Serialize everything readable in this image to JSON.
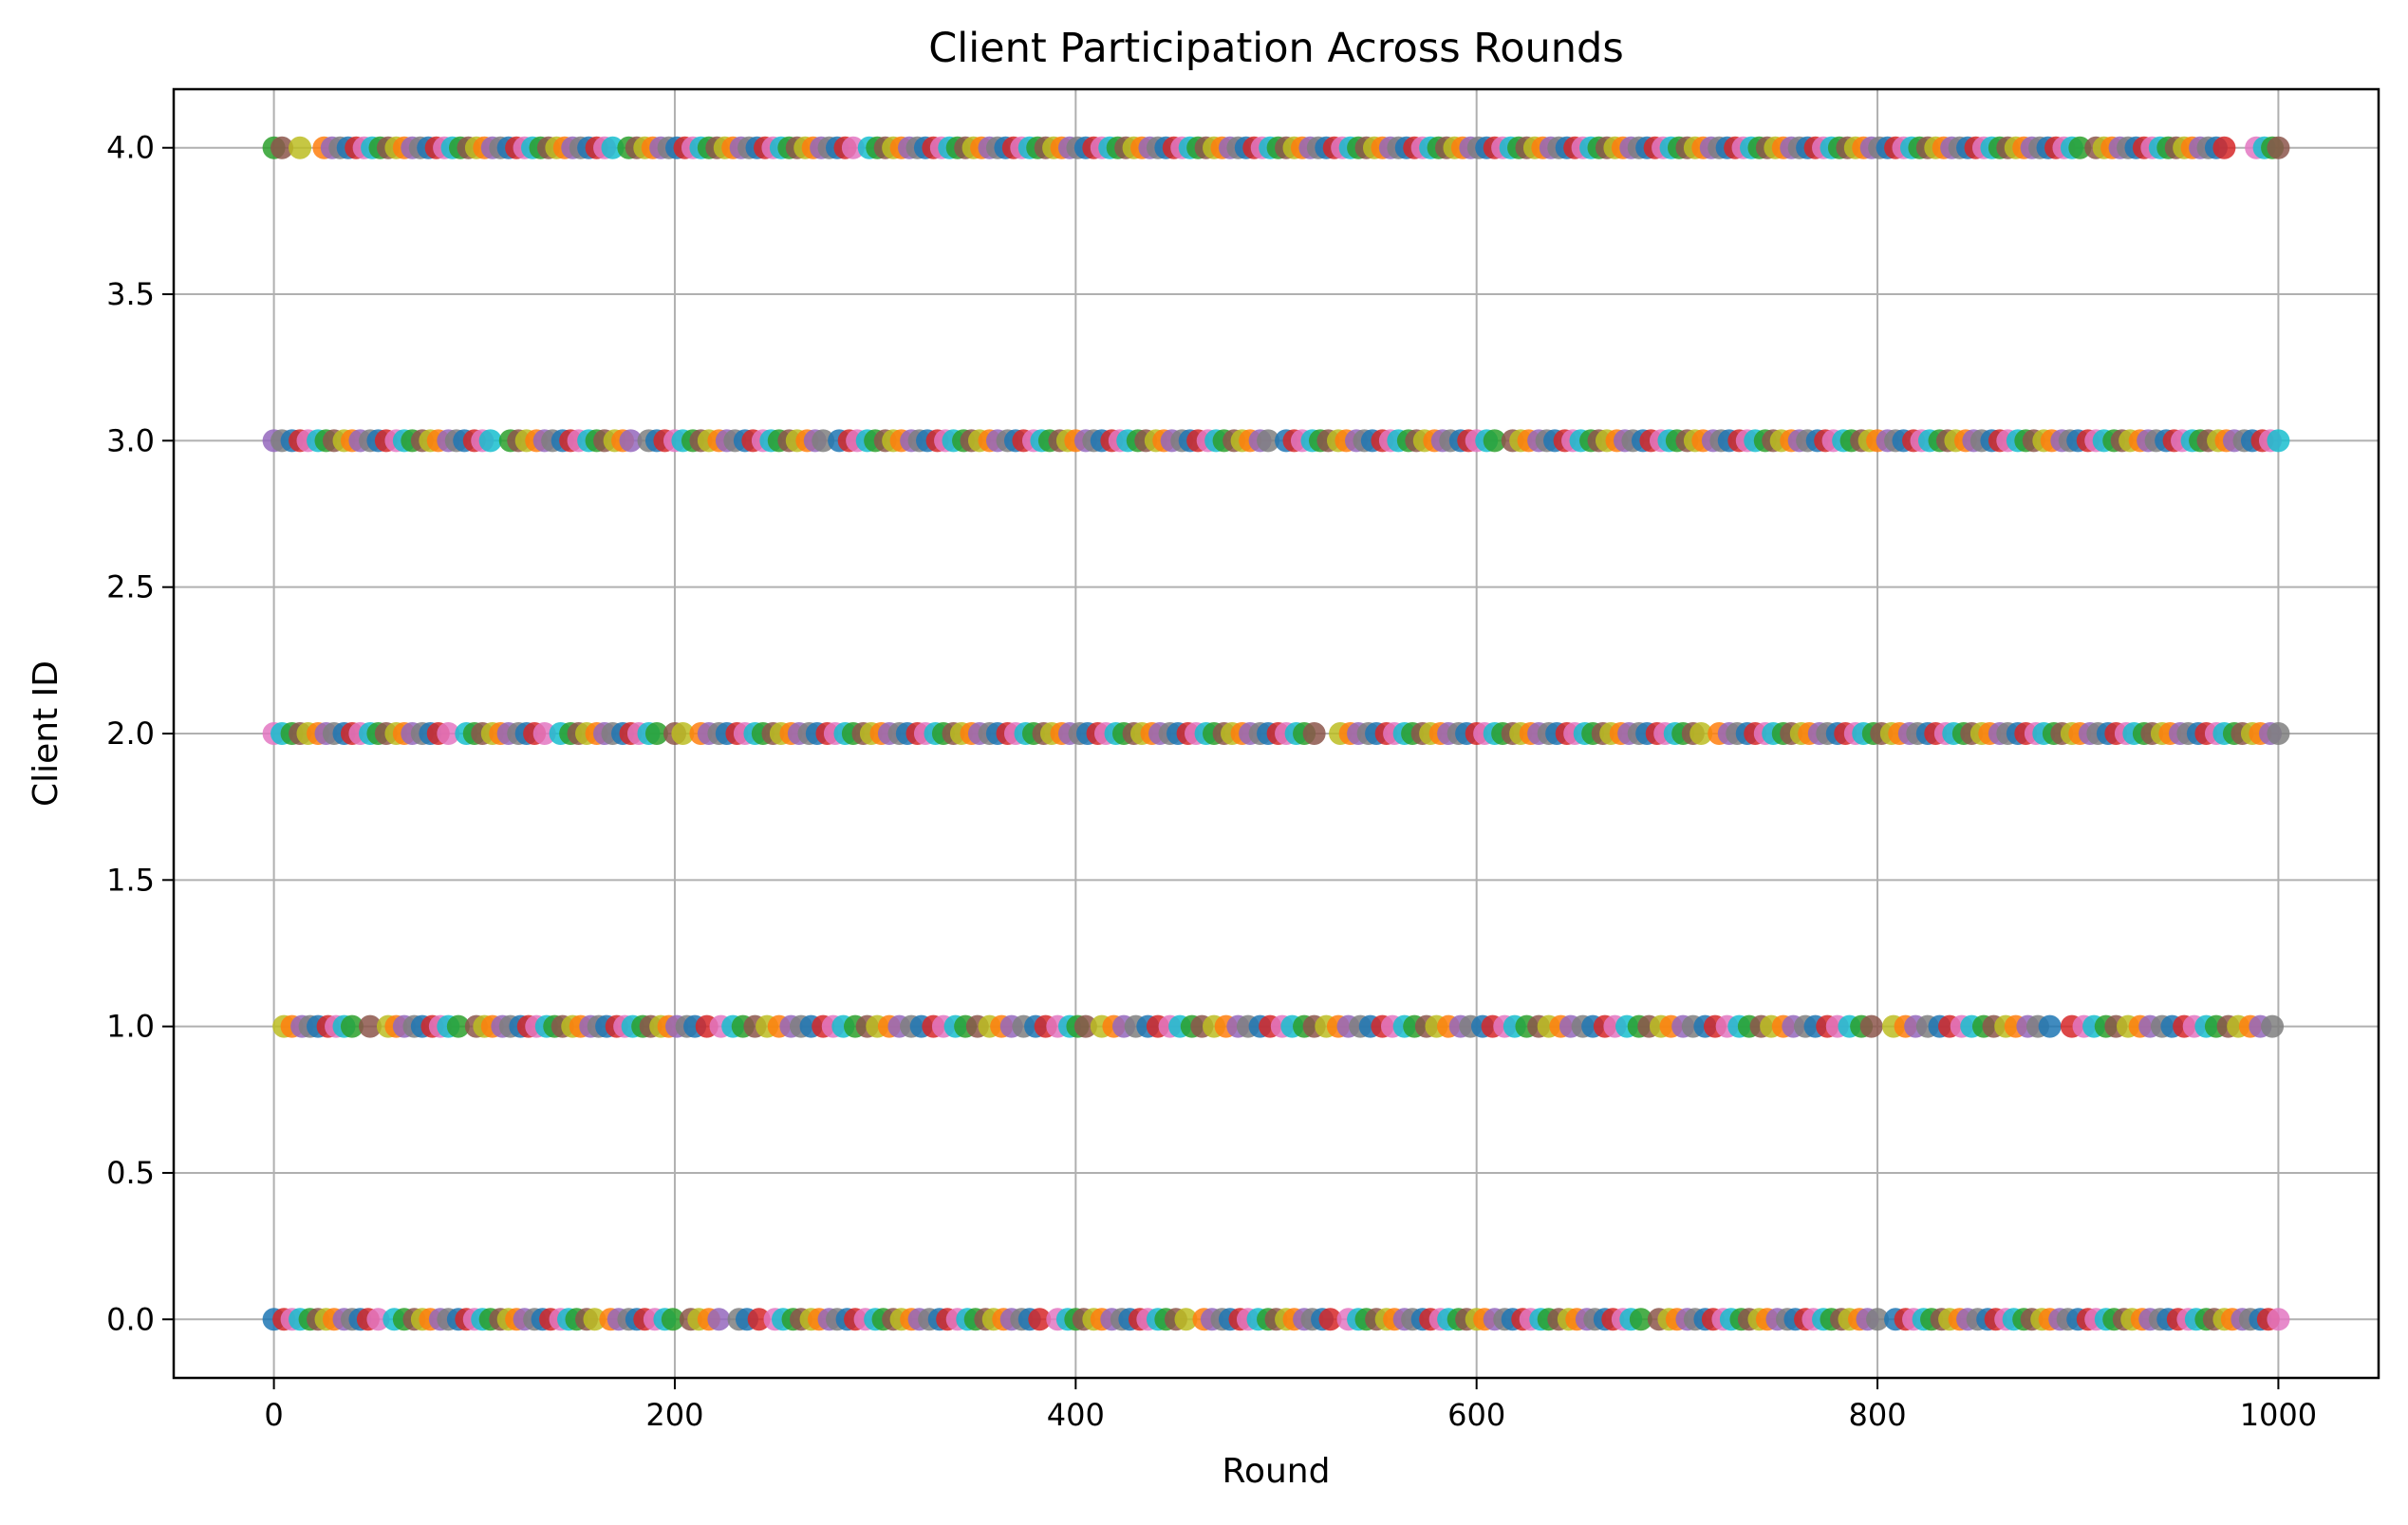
{
  "chart_data": {
    "type": "scatter",
    "title": "Client Participation Across Rounds",
    "xlabel": "Round",
    "ylabel": "Client ID",
    "xlim": [
      -50,
      1050
    ],
    "ylim": [
      -0.2,
      4.2
    ],
    "grid": true,
    "legend": "none",
    "x_ticks": [
      {
        "value": 0,
        "label": "0"
      },
      {
        "value": 200,
        "label": "200"
      },
      {
        "value": 400,
        "label": "400"
      },
      {
        "value": 600,
        "label": "600"
      },
      {
        "value": 800,
        "label": "800"
      },
      {
        "value": 1000,
        "label": "1000"
      }
    ],
    "y_ticks": [
      {
        "value": 0.0,
        "label": "0.0"
      },
      {
        "value": 0.5,
        "label": "0.5"
      },
      {
        "value": 1.0,
        "label": "1.0"
      },
      {
        "value": 1.5,
        "label": "1.5"
      },
      {
        "value": 2.0,
        "label": "2.0"
      },
      {
        "value": 2.5,
        "label": "2.5"
      },
      {
        "value": 3.0,
        "label": "3.0"
      },
      {
        "value": 3.5,
        "label": "3.5"
      },
      {
        "value": 4.0,
        "label": "4.0"
      }
    ],
    "marker_colors": [
      "#1f77b4",
      "#ff7f0e",
      "#2ca02c",
      "#d62728",
      "#9467bd",
      "#8c564b",
      "#e377c2",
      "#7f7f7f",
      "#bcbd22",
      "#17becf"
    ],
    "series": [
      {
        "client_id": 0,
        "rounds": [
          0,
          5,
          9,
          13,
          18,
          22,
          26,
          30,
          35,
          39,
          43,
          47,
          52,
          60,
          65,
          70,
          74,
          78,
          83,
          87,
          92,
          96,
          100,
          104,
          108,
          113,
          117,
          121,
          125,
          130,
          134,
          138,
          143,
          147,
          151,
          156,
          160,
          168,
          172,
          177,
          181,
          185,
          190,
          195,
          199,
          208,
          212,
          217,
          222,
          232,
          236,
          242,
          250,
          254,
          259,
          263,
          268,
          272,
          277,
          281,
          286,
          290,
          295,
          300,
          304,
          309,
          313,
          318,
          322,
          327,
          332,
          336,
          341,
          346,
          350,
          355,
          359,
          364,
          368,
          373,
          377,
          382,
          391,
          396,
          400,
          404,
          409,
          413,
          418,
          423,
          427,
          432,
          436,
          441,
          445,
          450,
          455,
          464,
          468,
          473,
          477,
          482,
          486,
          491,
          496,
          500,
          505,
          509,
          514,
          518,
          523,
          527,
          536,
          541,
          545,
          550,
          555,
          559,
          564,
          568,
          573,
          577,
          582,
          586,
          591,
          595,
          600,
          604,
          609,
          614,
          618,
          623,
          627,
          632,
          636,
          641,
          646,
          650,
          655,
          659,
          664,
          668,
          673,
          677,
          682,
          691,
          696,
          700,
          705,
          709,
          714,
          718,
          723,
          727,
          732,
          736,
          741,
          745,
          750,
          755,
          759,
          764,
          768,
          773,
          777,
          782,
          786,
          791,
          795,
          800,
          809,
          814,
          818,
          823,
          827,
          832,
          836,
          841,
          845,
          850,
          855,
          859,
          864,
          868,
          873,
          877,
          882,
          886,
          891,
          895,
          900,
          905,
          909,
          914,
          918,
          923,
          927,
          932,
          936,
          941,
          945,
          950,
          955,
          959,
          964,
          968,
          973,
          977,
          982,
          986,
          991,
          995,
          1000
        ]
      },
      {
        "client_id": 1,
        "rounds": [
          5,
          9,
          14,
          18,
          22,
          27,
          31,
          35,
          39,
          48,
          57,
          61,
          65,
          70,
          74,
          79,
          83,
          87,
          92,
          101,
          105,
          109,
          114,
          118,
          123,
          127,
          131,
          136,
          140,
          144,
          149,
          153,
          158,
          162,
          166,
          171,
          175,
          179,
          184,
          188,
          193,
          197,
          201,
          206,
          210,
          216,
          223,
          229,
          234,
          240,
          246,
          252,
          258,
          263,
          268,
          274,
          279,
          284,
          290,
          296,
          301,
          307,
          312,
          318,
          323,
          329,
          334,
          340,
          345,
          351,
          357,
          363,
          368,
          374,
          380,
          385,
          391,
          397,
          401,
          405,
          413,
          419,
          424,
          430,
          436,
          441,
          447,
          452,
          458,
          463,
          469,
          475,
          481,
          486,
          492,
          497,
          503,
          508,
          514,
          519,
          525,
          531,
          536,
          542,
          547,
          553,
          558,
          564,
          569,
          575,
          580,
          586,
          592,
          597,
          603,
          608,
          614,
          619,
          625,
          631,
          636,
          642,
          647,
          653,
          658,
          664,
          669,
          675,
          681,
          686,
          692,
          697,
          703,
          708,
          714,
          719,
          725,
          731,
          736,
          742,
          747,
          753,
          758,
          764,
          769,
          775,
          780,
          786,
          792,
          797,
          808,
          814,
          819,
          825,
          831,
          836,
          842,
          847,
          853,
          858,
          864,
          869,
          875,
          880,
          886,
          897,
          903,
          908,
          914,
          919,
          925,
          931,
          936,
          942,
          947,
          953,
          958,
          964,
          969,
          975,
          980,
          986,
          991,
          997
        ]
      },
      {
        "client_id": 2,
        "rounds": [
          0,
          4,
          9,
          13,
          17,
          22,
          26,
          30,
          35,
          39,
          43,
          48,
          52,
          56,
          61,
          65,
          69,
          74,
          78,
          82,
          87,
          96,
          100,
          104,
          109,
          113,
          117,
          122,
          126,
          130,
          135,
          143,
          148,
          152,
          156,
          161,
          165,
          169,
          174,
          178,
          182,
          187,
          191,
          200,
          204,
          213,
          217,
          222,
          226,
          231,
          235,
          240,
          244,
          249,
          253,
          258,
          262,
          267,
          271,
          276,
          280,
          285,
          289,
          294,
          298,
          303,
          307,
          312,
          316,
          321,
          325,
          330,
          334,
          339,
          343,
          348,
          352,
          357,
          361,
          366,
          370,
          375,
          379,
          384,
          388,
          393,
          397,
          402,
          406,
          411,
          415,
          420,
          424,
          429,
          433,
          438,
          442,
          447,
          451,
          456,
          460,
          465,
          469,
          474,
          478,
          483,
          487,
          492,
          496,
          501,
          505,
          510,
          514,
          519,
          532,
          537,
          541,
          546,
          550,
          555,
          559,
          564,
          568,
          573,
          577,
          582,
          586,
          591,
          595,
          600,
          604,
          609,
          613,
          618,
          622,
          627,
          631,
          636,
          640,
          645,
          649,
          654,
          658,
          663,
          667,
          672,
          676,
          681,
          685,
          690,
          694,
          699,
          703,
          708,
          712,
          721,
          726,
          730,
          735,
          739,
          744,
          748,
          753,
          757,
          762,
          766,
          771,
          775,
          780,
          784,
          789,
          793,
          798,
          802,
          807,
          811,
          816,
          820,
          825,
          829,
          834,
          838,
          843,
          847,
          852,
          856,
          861,
          865,
          870,
          874,
          879,
          883,
          888,
          892,
          897,
          901,
          906,
          910,
          915,
          919,
          924,
          928,
          933,
          937,
          942,
          946,
          951,
          955,
          960,
          964,
          969,
          973,
          978,
          982,
          987,
          991,
          996,
          1000
        ]
      },
      {
        "client_id": 3,
        "rounds": [
          0,
          4,
          9,
          13,
          17,
          22,
          26,
          30,
          35,
          39,
          43,
          48,
          52,
          56,
          61,
          65,
          69,
          74,
          78,
          82,
          87,
          91,
          95,
          100,
          104,
          108,
          118,
          122,
          126,
          131,
          135,
          139,
          144,
          148,
          152,
          157,
          161,
          165,
          170,
          174,
          178,
          187,
          191,
          195,
          200,
          204,
          209,
          213,
          217,
          222,
          226,
          230,
          235,
          239,
          244,
          248,
          252,
          257,
          261,
          266,
          270,
          274,
          282,
          287,
          291,
          296,
          300,
          305,
          309,
          313,
          318,
          322,
          326,
          331,
          335,
          339,
          344,
          348,
          352,
          357,
          361,
          366,
          370,
          374,
          379,
          383,
          387,
          392,
          396,
          400,
          405,
          409,
          413,
          418,
          422,
          426,
          431,
          435,
          440,
          444,
          448,
          453,
          457,
          461,
          466,
          470,
          474,
          479,
          483,
          487,
          492,
          496,
          505,
          509,
          513,
          518,
          522,
          526,
          531,
          535,
          540,
          544,
          548,
          553,
          557,
          561,
          566,
          570,
          574,
          579,
          583,
          587,
          592,
          596,
          600,
          605,
          609,
          618,
          622,
          626,
          631,
          635,
          639,
          644,
          648,
          652,
          657,
          661,
          665,
          670,
          674,
          678,
          683,
          687,
          692,
          696,
          700,
          705,
          709,
          713,
          718,
          722,
          726,
          731,
          735,
          739,
          744,
          748,
          752,
          757,
          761,
          765,
          770,
          774,
          778,
          783,
          787,
          792,
          796,
          800,
          805,
          809,
          813,
          818,
          822,
          826,
          831,
          835,
          839,
          844,
          848,
          852,
          857,
          861,
          865,
          870,
          874,
          878,
          883,
          887,
          892,
          896,
          900,
          905,
          909,
          913,
          918,
          922,
          926,
          931,
          935,
          939,
          944,
          948,
          952,
          957,
          961,
          965,
          970,
          974,
          978,
          983,
          987,
          992,
          996,
          1000
        ]
      },
      {
        "client_id": 4,
        "rounds": [
          0,
          4,
          13,
          25,
          29,
          33,
          37,
          41,
          45,
          49,
          53,
          57,
          61,
          65,
          69,
          73,
          77,
          81,
          85,
          89,
          93,
          97,
          101,
          105,
          109,
          113,
          117,
          121,
          125,
          129,
          133,
          137,
          141,
          145,
          149,
          153,
          157,
          161,
          165,
          169,
          177,
          181,
          185,
          189,
          193,
          197,
          201,
          205,
          209,
          213,
          217,
          221,
          225,
          229,
          233,
          237,
          241,
          245,
          249,
          253,
          257,
          261,
          265,
          269,
          273,
          277,
          281,
          285,
          289,
          297,
          301,
          305,
          309,
          313,
          317,
          321,
          325,
          329,
          333,
          337,
          341,
          345,
          349,
          353,
          357,
          361,
          365,
          369,
          373,
          377,
          381,
          385,
          389,
          393,
          397,
          401,
          405,
          409,
          413,
          417,
          421,
          425,
          429,
          433,
          437,
          441,
          445,
          449,
          453,
          457,
          461,
          465,
          469,
          473,
          477,
          481,
          485,
          489,
          493,
          497,
          501,
          505,
          509,
          513,
          517,
          521,
          525,
          529,
          533,
          537,
          541,
          545,
          549,
          553,
          557,
          561,
          565,
          569,
          573,
          577,
          581,
          585,
          589,
          593,
          597,
          601,
          605,
          609,
          613,
          617,
          621,
          625,
          629,
          633,
          637,
          641,
          645,
          649,
          653,
          657,
          661,
          665,
          669,
          673,
          677,
          681,
          685,
          689,
          693,
          697,
          701,
          705,
          709,
          713,
          717,
          721,
          725,
          729,
          733,
          737,
          741,
          745,
          749,
          753,
          757,
          761,
          765,
          769,
          773,
          777,
          781,
          785,
          789,
          793,
          797,
          801,
          805,
          809,
          813,
          817,
          821,
          825,
          829,
          833,
          837,
          841,
          845,
          849,
          853,
          857,
          861,
          865,
          869,
          873,
          877,
          881,
          885,
          889,
          893,
          897,
          901,
          909,
          913,
          917,
          921,
          925,
          929,
          933,
          937,
          941,
          945,
          949,
          953,
          957,
          961,
          965,
          969,
          973,
          989,
          993,
          997,
          1000
        ]
      }
    ]
  }
}
